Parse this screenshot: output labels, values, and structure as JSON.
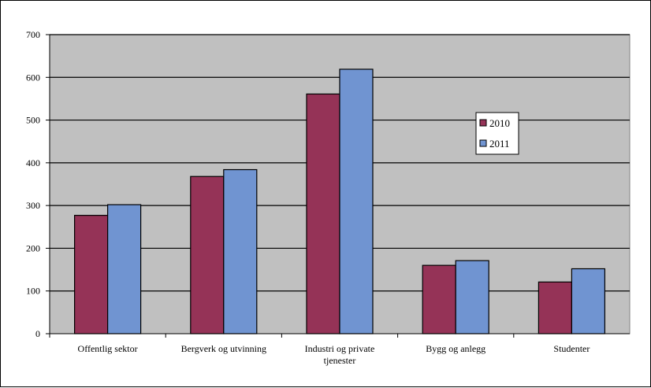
{
  "chart_data": {
    "type": "bar",
    "categories": [
      [
        "Offentlig sektor"
      ],
      [
        "Bergverk  og utvinning"
      ],
      [
        "Industri og private",
        "tjenester"
      ],
      [
        "Bygg og anlegg"
      ],
      [
        "Studenter"
      ]
    ],
    "series": [
      {
        "name": "2010",
        "color": "#953357",
        "values": [
          277,
          368,
          561,
          160,
          121
        ]
      },
      {
        "name": "2011",
        "color": "#7094d1",
        "values": [
          302,
          384,
          619,
          171,
          152
        ]
      }
    ],
    "ylim": [
      0,
      700
    ],
    "yticks": [
      0,
      100,
      200,
      300,
      400,
      500,
      600,
      700
    ],
    "grid": true,
    "plot_background": "#c0c0c0",
    "legend_position": "right-middle"
  }
}
